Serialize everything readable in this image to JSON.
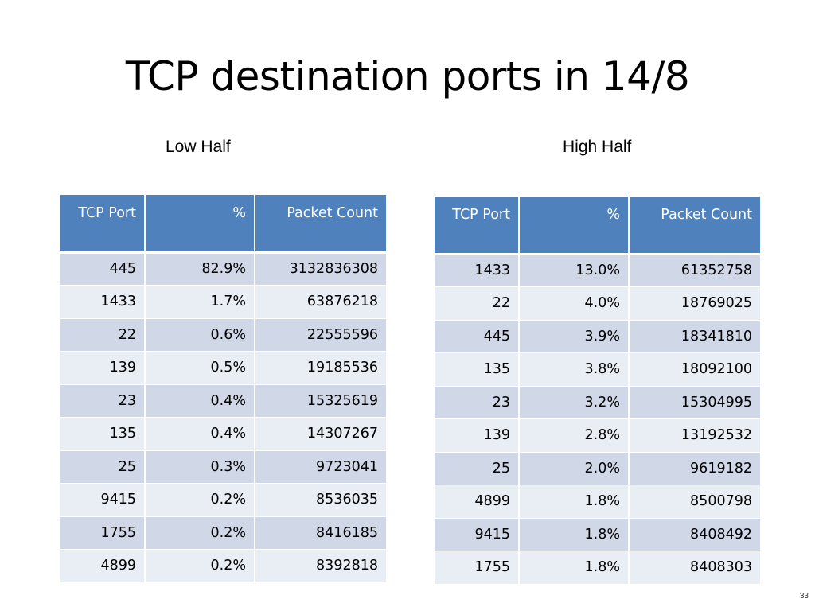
{
  "title": "TCP destination ports in 14/8",
  "low_half": {
    "label": "Low Half",
    "headers": {
      "port": "TCP Port",
      "percent": "%",
      "count": "Packet Count"
    },
    "rows": [
      {
        "port": "445",
        "percent": "82.9%",
        "count": "3132836308"
      },
      {
        "port": "1433",
        "percent": "1.7%",
        "count": "63876218"
      },
      {
        "port": "22",
        "percent": "0.6%",
        "count": "22555596"
      },
      {
        "port": "139",
        "percent": "0.5%",
        "count": "19185536"
      },
      {
        "port": "23",
        "percent": "0.4%",
        "count": "15325619"
      },
      {
        "port": "135",
        "percent": "0.4%",
        "count": "14307267"
      },
      {
        "port": "25",
        "percent": "0.3%",
        "count": "9723041"
      },
      {
        "port": "9415",
        "percent": "0.2%",
        "count": "8536035"
      },
      {
        "port": "1755",
        "percent": "0.2%",
        "count": "8416185"
      },
      {
        "port": "4899",
        "percent": "0.2%",
        "count": "8392818"
      }
    ]
  },
  "high_half": {
    "label": "High Half",
    "headers": {
      "port": "TCP Port",
      "percent": "%",
      "count": "Packet Count"
    },
    "rows": [
      {
        "port": "1433",
        "percent": "13.0%",
        "count": "61352758"
      },
      {
        "port": "22",
        "percent": "4.0%",
        "count": "18769025"
      },
      {
        "port": "445",
        "percent": "3.9%",
        "count": "18341810"
      },
      {
        "port": "135",
        "percent": "3.8%",
        "count": "18092100"
      },
      {
        "port": "23",
        "percent": "3.2%",
        "count": "15304995"
      },
      {
        "port": "139",
        "percent": "2.8%",
        "count": "13192532"
      },
      {
        "port": "25",
        "percent": "2.0%",
        "count": "9619182"
      },
      {
        "port": "4899",
        "percent": "1.8%",
        "count": "8500798"
      },
      {
        "port": "9415",
        "percent": "1.8%",
        "count": "8408492"
      },
      {
        "port": "1755",
        "percent": "1.8%",
        "count": "8408303"
      }
    ]
  },
  "page_number": "33",
  "colors": {
    "header_fill": "#4f81bd",
    "row_odd": "#d0d8e8",
    "row_even": "#e9edf4"
  }
}
